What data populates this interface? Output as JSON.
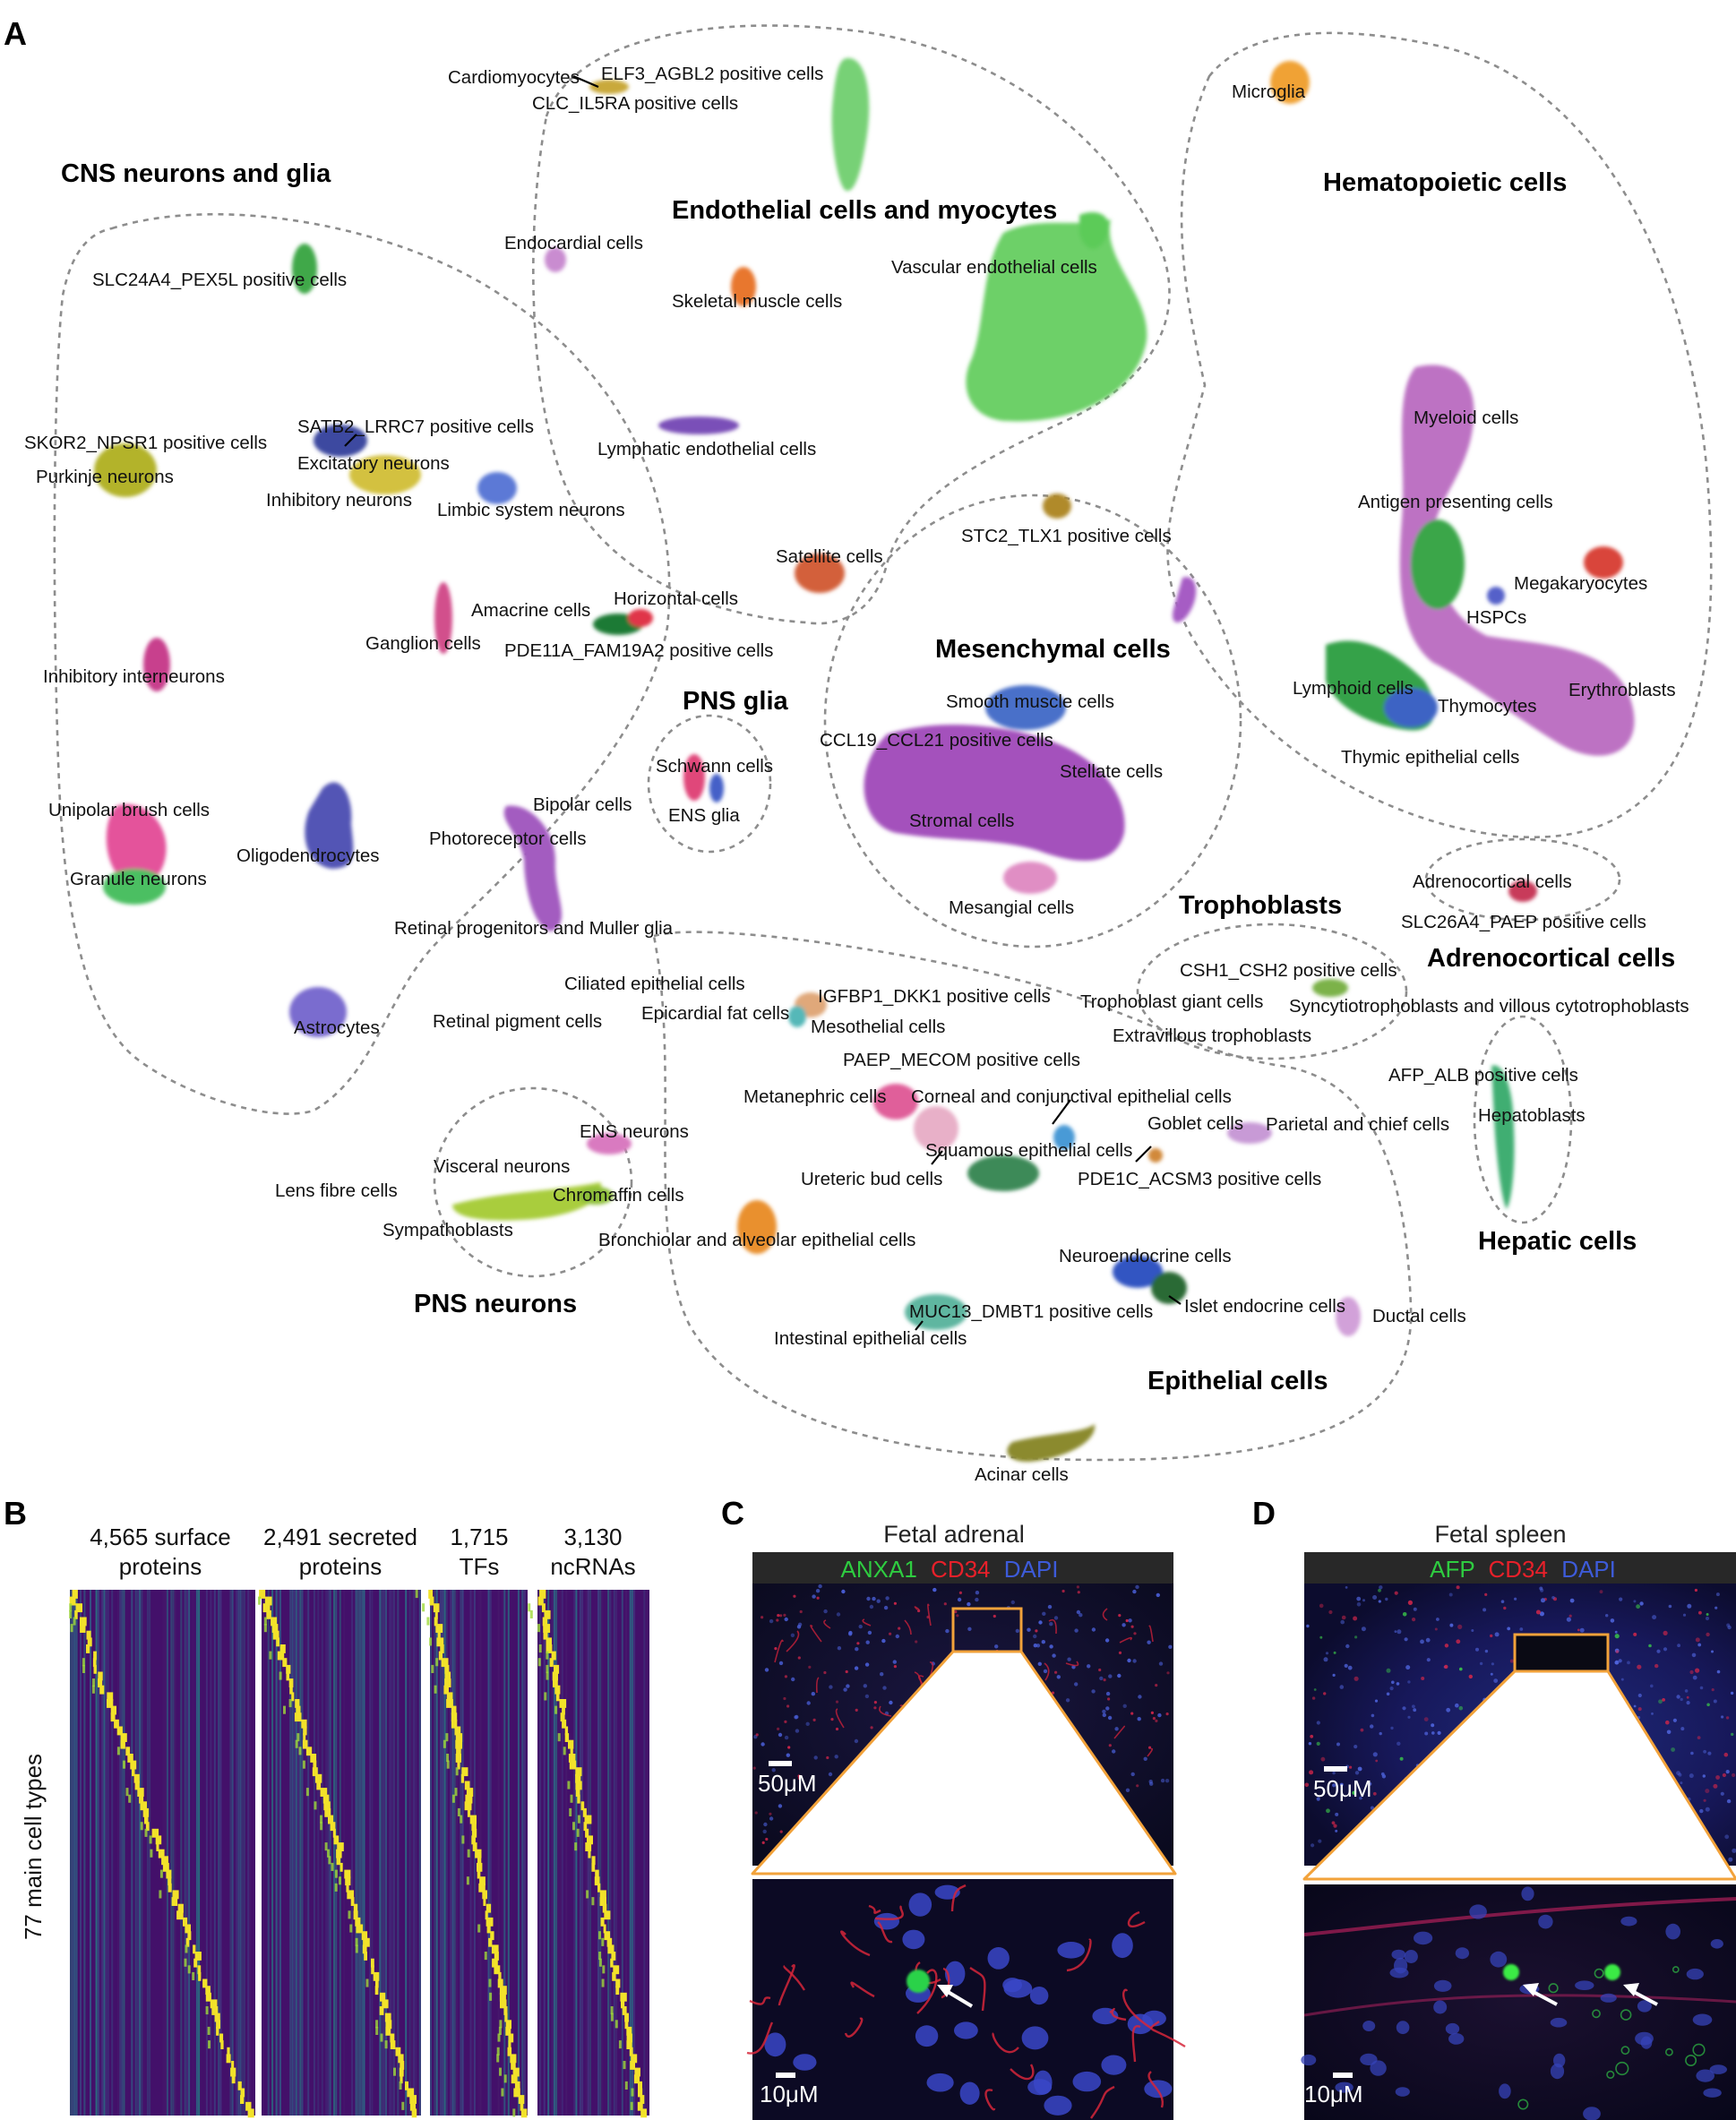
{
  "panel_labels": {
    "a": "A",
    "b": "B",
    "c": "C",
    "d": "D"
  },
  "groups": {
    "cns": "CNS neurons and glia",
    "endo": "Endothelial cells and myocytes",
    "hema": "Hematopoietic cells",
    "mes": "Mesenchymal cells",
    "pnsglia": "PNS glia",
    "troph": "Trophoblasts",
    "adreno": "Adrenocortical cells",
    "hep": "Hepatic cells",
    "pnsn": "PNS neurons",
    "epi": "Epithelial cells"
  },
  "cell_labels": [
    "Cardiomyocytes",
    "ELF3_AGBL2 positive cells",
    "CLC_IL5RA positive cells",
    "Microglia",
    "Endocardial cells",
    "SLC24A4_PEX5L positive cells",
    "Vascular endothelial cells",
    "Skeletal muscle cells",
    "SATB2_LRRC7 positive cells",
    "SKOR2_NPSR1 positive cells",
    "Excitatory neurons",
    "Purkinje neurons",
    "Lymphatic endothelial cells",
    "Inhibitory neurons",
    "Limbic system neurons",
    "Myeloid cells",
    "Antigen presenting cells",
    "STC2_TLX1 positive cells",
    "Satellite cells",
    "Megakaryocytes",
    "Horizontal cells",
    "Amacrine cells",
    "HSPCs",
    "Ganglion cells",
    "PDE11A_FAM19A2 positive cells",
    "Inhibitory interneurons",
    "Lymphoid cells",
    "Erythroblasts",
    "Thymocytes",
    "Smooth muscle cells",
    "CCL19_CCL21 positive cells",
    "Thymic epithelial cells",
    "Schwann cells",
    "Stellate cells",
    "Unipolar brush cells",
    "Bipolar cells",
    "ENS glia",
    "Stromal cells",
    "Oligodendrocytes",
    "Photoreceptor cells",
    "Granule neurons",
    "Adrenocortical cells",
    "Mesangial cells",
    "SLC26A4_PAEP positive cells",
    "Retinal progenitors and Muller glia",
    "CSH1_CSH2 positive cells",
    "Ciliated epithelial cells",
    "IGFBP1_DKK1 positive cells",
    "Trophoblast giant cells",
    "Syncytiotrophoblasts and villous cytotrophoblasts",
    "Epicardial fat cells",
    "Retinal pigment cells",
    "Astrocytes",
    "Mesothelial cells",
    "Extravillous trophoblasts",
    "PAEP_MECOM positive cells",
    "AFP_ALB positive cells",
    "Metanephric cells",
    "Corneal and conjunctival epithelial cells",
    "Hepatoblasts",
    "Goblet cells",
    "Parietal and chief cells",
    "ENS neurons",
    "Squamous epithelial cells",
    "Visceral neurons",
    "Ureteric bud cells",
    "PDE1C_ACSM3 positive cells",
    "Lens fibre cells",
    "Chromaffin cells",
    "Sympathoblasts",
    "Bronchiolar and alveolar epithelial cells",
    "Neuroendocrine cells",
    "MUC13_DMBT1 positive cells",
    "Islet endocrine cells",
    "Ductal cells",
    "Intestinal epithelial cells",
    "Acinar cells"
  ],
  "panel_b": {
    "headers": [
      {
        "l1": "4,565 surface",
        "l2": "proteins"
      },
      {
        "l1": "2,491 secreted",
        "l2": "proteins"
      },
      {
        "l1": "1,715",
        "l2": "TFs"
      },
      {
        "l1": "3,130",
        "l2": "ncRNAs"
      }
    ],
    "ylabel": "77 main cell types"
  },
  "panel_c": {
    "title": "Fetal adrenal",
    "stain": [
      {
        "t": "ANXA1",
        "c": "#2ecc40"
      },
      {
        "t": "CD34",
        "c": "#e8202a"
      },
      {
        "t": "DAPI",
        "c": "#3d5bd9"
      }
    ],
    "scale_top": "50μM",
    "scale_bottom": "10μM"
  },
  "panel_d": {
    "title": "Fetal spleen",
    "stain": [
      {
        "t": "AFP",
        "c": "#2ecc40"
      },
      {
        "t": "CD34",
        "c": "#e8202a"
      },
      {
        "t": "DAPI",
        "c": "#3d5bd9"
      }
    ],
    "scale_top": "50μM",
    "scale_bottom": "10μM"
  }
}
